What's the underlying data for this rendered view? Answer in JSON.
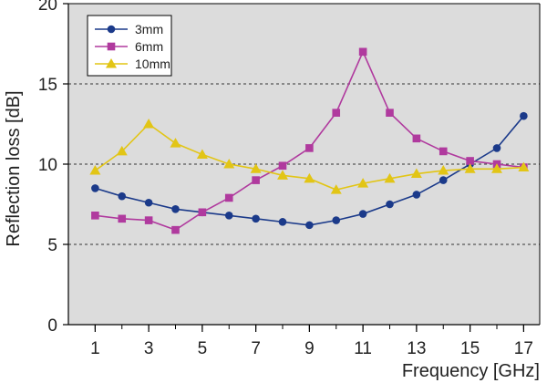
{
  "chart_data": {
    "type": "line",
    "xlabel": "Frequency [GHz]",
    "ylabel": "Reflection loss [dB]",
    "xlim": [
      0,
      17.6
    ],
    "ylim": [
      0,
      20
    ],
    "xticks": [
      "1",
      "3",
      "5",
      "7",
      "9",
      "11",
      "13",
      "15",
      "17"
    ],
    "yticks": [
      "0",
      "5",
      "10",
      "15",
      "20"
    ],
    "grid": "dashed horizontal at 5, 10, 15",
    "legend_position": "top-left",
    "background": "#dcdcdc",
    "series": [
      {
        "name": "3mm",
        "color": "#1b3a8a",
        "marker": "circle",
        "x": [
          1,
          2,
          3,
          4,
          5,
          6,
          7,
          8,
          9,
          10,
          11,
          12,
          13,
          14,
          15,
          16,
          17
        ],
        "y": [
          8.5,
          8.0,
          7.6,
          7.2,
          7.0,
          6.8,
          6.6,
          6.4,
          6.2,
          6.5,
          6.9,
          7.5,
          8.1,
          9.0,
          10.0,
          11.0,
          13.0
        ]
      },
      {
        "name": "6mm",
        "color": "#b03a9e",
        "marker": "square",
        "x": [
          1,
          2,
          3,
          4,
          5,
          6,
          7,
          8,
          9,
          10,
          11,
          12,
          13,
          14,
          15,
          16,
          17
        ],
        "y": [
          6.8,
          6.6,
          6.5,
          5.9,
          7.0,
          7.9,
          9.0,
          9.9,
          11.0,
          13.2,
          17.0,
          13.2,
          11.6,
          10.8,
          10.2,
          10.0,
          9.8
        ]
      },
      {
        "name": "10mm",
        "color": "#e2c515",
        "marker": "triangle",
        "x": [
          1,
          2,
          3,
          4,
          5,
          6,
          7,
          8,
          9,
          10,
          11,
          12,
          13,
          14,
          15,
          16,
          17
        ],
        "y": [
          9.6,
          10.8,
          12.5,
          11.3,
          10.6,
          10.0,
          9.7,
          9.3,
          9.1,
          8.4,
          8.8,
          9.1,
          9.4,
          9.6,
          9.7,
          9.7,
          9.8
        ]
      }
    ]
  }
}
